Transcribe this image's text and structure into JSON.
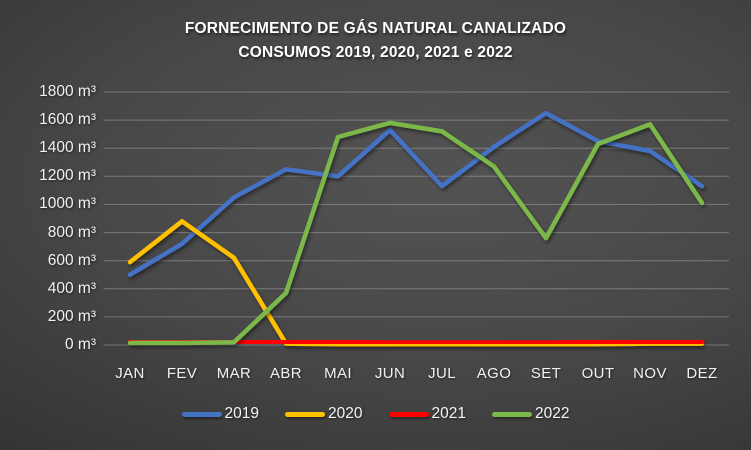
{
  "title": {
    "line1": "FORNECIMENTO DE GÁS NATURAL CANALIZADO",
    "line2": "CONSUMOS 2019, 2020, 2021 e 2022"
  },
  "chart_data": {
    "type": "line",
    "title": "FORNECIMENTO DE GÁS NATURAL CANALIZADO — CONSUMOS 2019, 2020, 2021 e 2022",
    "categories": [
      "JAN",
      "FEV",
      "MAR",
      "ABR",
      "MAI",
      "JUN",
      "JUL",
      "AGO",
      "SET",
      "OUT",
      "NOV",
      "DEZ"
    ],
    "y_ticks": [
      1800,
      1600,
      1400,
      1200,
      1000,
      800,
      600,
      400,
      200,
      0
    ],
    "y_tick_labels": [
      "1800 m³",
      "1600 m³",
      "1400 m³",
      "1200 m³",
      "1000 m³",
      "800 m³",
      "600 m³",
      "400 m³",
      "200 m³",
      "0 m³"
    ],
    "ylim": [
      0,
      1800
    ],
    "y_unit": "m³",
    "grid": true,
    "legend_position": "bottom",
    "series": [
      {
        "name": "2019",
        "color": "#4472C4",
        "width": 4.5,
        "values": [
          500,
          720,
          1050,
          1250,
          1200,
          1530,
          1130,
          1410,
          1650,
          1450,
          1380,
          1130
        ]
      },
      {
        "name": "2020",
        "color": "#FFC000",
        "width": 4.5,
        "values": [
          590,
          880,
          620,
          10,
          5,
          5,
          5,
          5,
          5,
          5,
          10,
          10
        ]
      },
      {
        "name": "2021",
        "color": "#FF0000",
        "width": 5,
        "values": [
          30,
          25,
          20,
          20,
          20,
          15,
          15,
          15,
          15,
          20,
          25,
          25
        ]
      },
      {
        "name": "2022",
        "color": "#7CB84A",
        "width": 4.5,
        "values": [
          15,
          15,
          20,
          370,
          1480,
          1580,
          1520,
          1270,
          760,
          1430,
          1570,
          1010
        ]
      }
    ]
  }
}
